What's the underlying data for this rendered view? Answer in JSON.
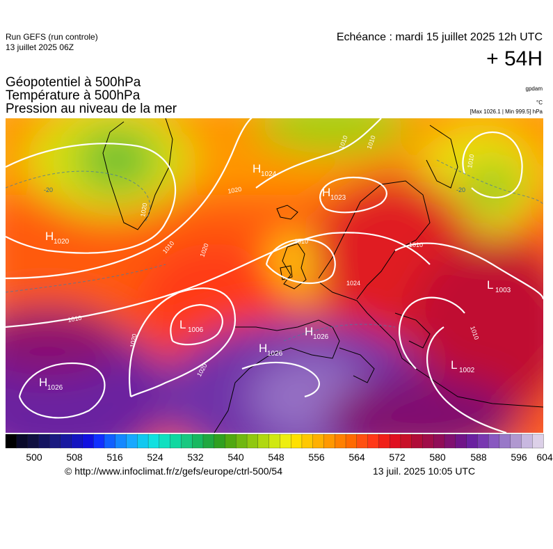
{
  "header": {
    "run_name": "Run GEFS (run controle)",
    "run_date": "13 juillet 2025 06Z",
    "echeance": "Echéance : mardi 15 juillet 2025 12h UTC",
    "lead_time": "+ 54H"
  },
  "parameters": [
    "Géopotentiel à 500hPa",
    "Température à 500hPa",
    "Pression au niveau de la mer"
  ],
  "units": {
    "geopotential": "gpdam",
    "temperature": "°C",
    "pressure": "[Max 1026.1 | Min 999.5] hPa"
  },
  "map": {
    "pressure_centers": [
      {
        "type": "H",
        "value": "1024"
      },
      {
        "type": "H",
        "value": "1023"
      },
      {
        "type": "H",
        "value": "1020"
      },
      {
        "type": "L",
        "value": "1006"
      },
      {
        "type": "H",
        "value": "1026"
      },
      {
        "type": "H",
        "value": "1026"
      },
      {
        "type": "H",
        "value": "1026"
      },
      {
        "type": "L",
        "value": "1003"
      },
      {
        "type": "L",
        "value": "1002"
      }
    ],
    "isobar_labels": [
      "1020",
      "1010",
      "1010",
      "1020",
      "1020",
      "1020",
      "1020",
      "1010",
      "1010",
      "1010",
      "1010",
      "1024",
      "1010",
      "1010"
    ],
    "temperature_labels": [
      "-20",
      "-20"
    ]
  },
  "colorbar": {
    "tick_labels": [
      "500",
      "508",
      "516",
      "524",
      "532",
      "540",
      "548",
      "556",
      "564",
      "572",
      "580",
      "588",
      "596",
      "604"
    ],
    "colors": [
      "#000000",
      "#0a0a2a",
      "#101040",
      "#141460",
      "#1a1a80",
      "#1818a0",
      "#1414c0",
      "#1010e0",
      "#1030ff",
      "#1060ff",
      "#1488ff",
      "#18a8ff",
      "#10c8f0",
      "#10e0e0",
      "#10e0c0",
      "#10d8a0",
      "#18c880",
      "#18b860",
      "#20a840",
      "#30a020",
      "#50a810",
      "#70b810",
      "#90c810",
      "#b0d810",
      "#d0e810",
      "#eeee10",
      "#ffe000",
      "#ffc800",
      "#ffb000",
      "#ff9800",
      "#ff8000",
      "#ff6a00",
      "#ff5010",
      "#ff3818",
      "#f02018",
      "#e01020",
      "#c81028",
      "#b00c38",
      "#a00c48",
      "#900c58",
      "#801070",
      "#701488",
      "#6a20a0",
      "#7838b0",
      "#8858c0",
      "#9878c8",
      "#b098d0",
      "#c8b8e0",
      "#dcd0e8"
    ]
  },
  "footer": {
    "credit": "© http://www.infoclimat.fr/z/gefs/europe/ctrl-500/54",
    "timestamp": "13 juil. 2025 10:05 UTC"
  }
}
